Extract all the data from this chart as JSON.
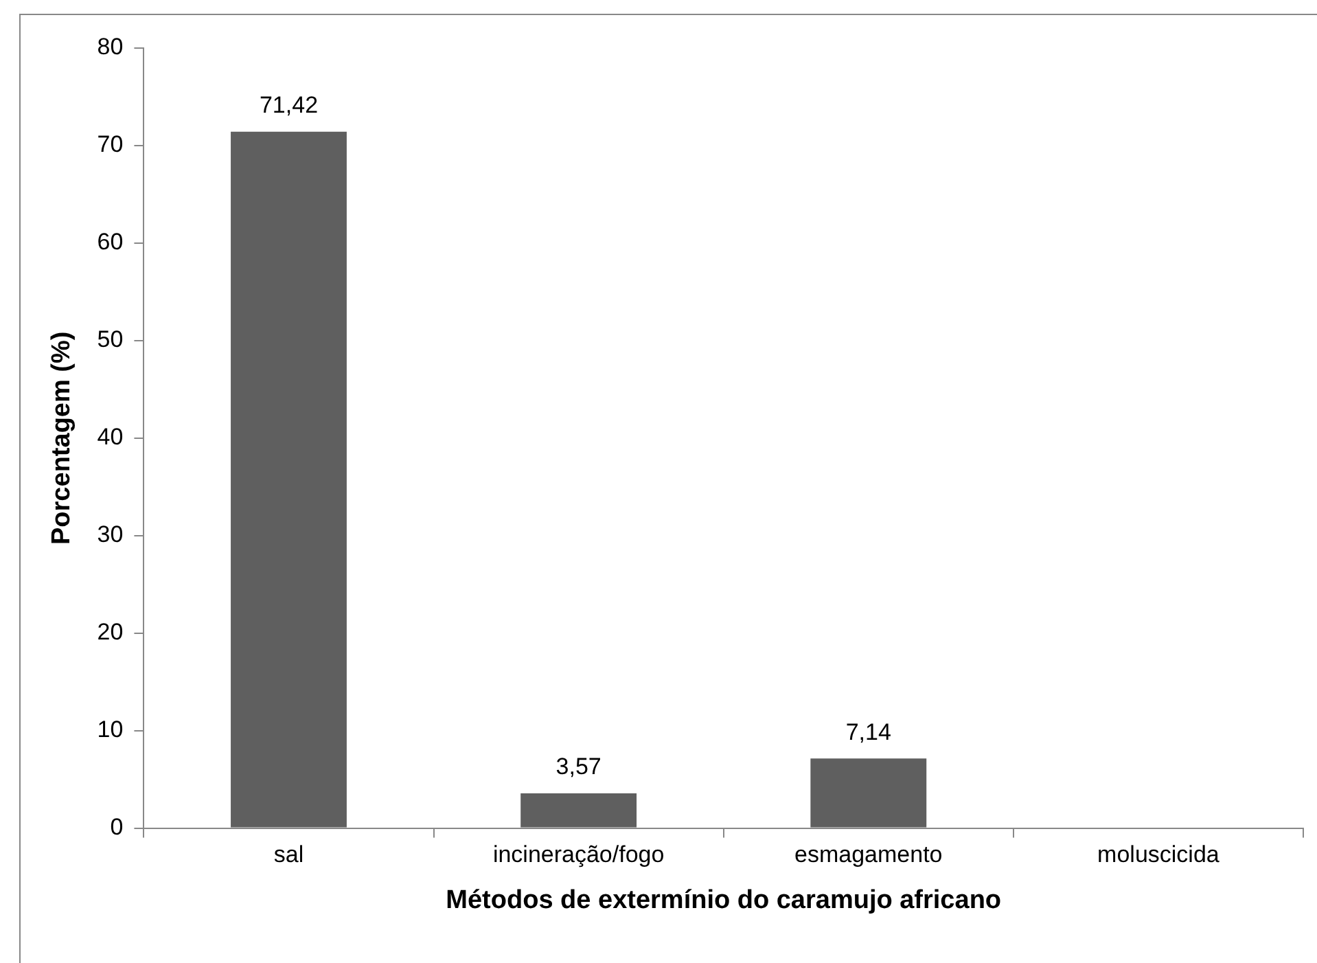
{
  "chart_data": {
    "type": "bar",
    "xlabel": "Métodos de extermínio do caramujo africano",
    "ylabel": "Porcentagem (%)",
    "categories": [
      "sal",
      "incineração/fogo",
      "esmagamento",
      "moluscicida"
    ],
    "values": [
      71.42,
      3.57,
      7.14,
      0
    ],
    "value_labels": [
      "71,42",
      "3,57",
      "7,14",
      null
    ],
    "color": "#5f5f5f",
    "ylim": [
      0,
      80
    ],
    "yticks": [
      0,
      10,
      20,
      30,
      40,
      50,
      60,
      70,
      80
    ],
    "grid": false,
    "legend": false
  }
}
